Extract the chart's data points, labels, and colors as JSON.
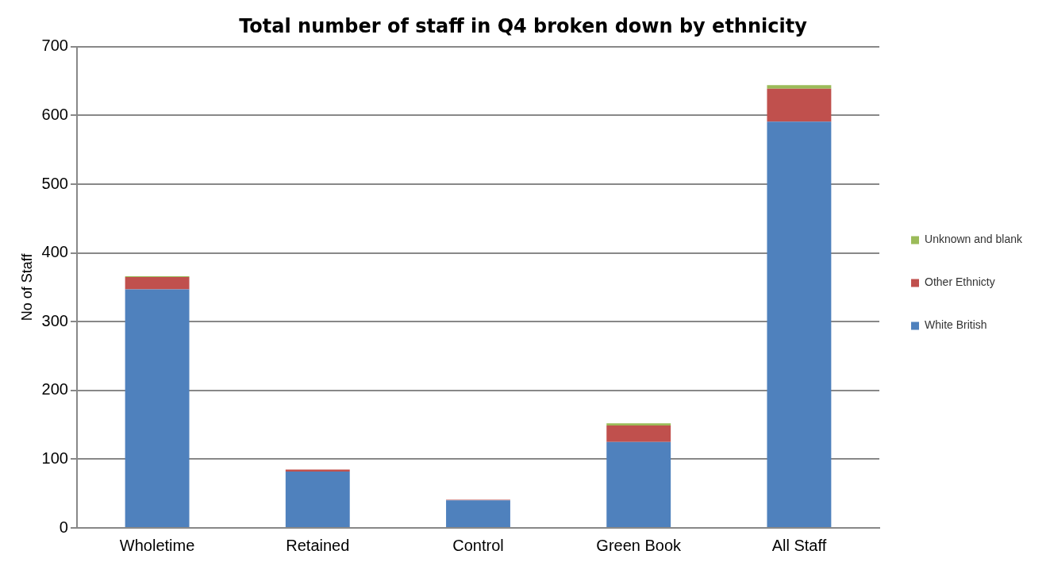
{
  "chart_data": {
    "type": "bar",
    "title": "Total number of staff in Q4 broken down by ethnicity",
    "ylabel": "No of Staff",
    "categories": [
      "Wholetime",
      "Retained",
      "Control",
      "Green Book",
      "All Staff"
    ],
    "stacked": true,
    "series": [
      {
        "name": "White British",
        "color": "#4f81bd",
        "values": [
          347,
          82,
          40,
          125,
          591
        ]
      },
      {
        "name": "Other Ethnicty",
        "color": "#c0504d",
        "values": [
          18,
          3,
          1,
          24,
          48
        ]
      },
      {
        "name": "Unknown and blank",
        "color": "#9bbb59",
        "values": [
          1,
          0,
          0,
          3,
          5
        ]
      }
    ],
    "ylim": [
      0,
      700
    ],
    "yticks": [
      0,
      100,
      200,
      300,
      400,
      500,
      600,
      700
    ],
    "grid": "y",
    "legend": "right"
  }
}
